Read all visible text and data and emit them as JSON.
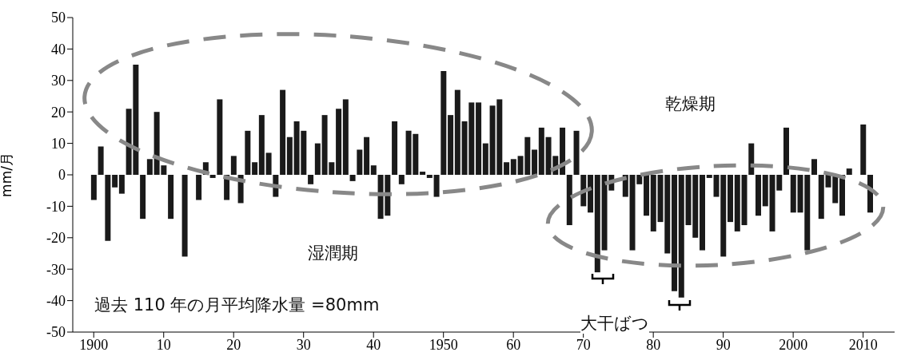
{
  "chart_data": {
    "type": "bar",
    "ylabel": "mm/月",
    "x": [
      1900,
      1901,
      1902,
      1903,
      1904,
      1905,
      1906,
      1907,
      1908,
      1909,
      1910,
      1911,
      1912,
      1913,
      1914,
      1915,
      1916,
      1917,
      1918,
      1919,
      1920,
      1921,
      1922,
      1923,
      1924,
      1925,
      1926,
      1927,
      1928,
      1929,
      1930,
      1931,
      1932,
      1933,
      1934,
      1935,
      1936,
      1937,
      1938,
      1939,
      1940,
      1941,
      1942,
      1943,
      1944,
      1945,
      1946,
      1947,
      1948,
      1949,
      1950,
      1951,
      1952,
      1953,
      1954,
      1955,
      1956,
      1957,
      1958,
      1959,
      1960,
      1961,
      1962,
      1963,
      1964,
      1965,
      1966,
      1967,
      1968,
      1969,
      1970,
      1971,
      1972,
      1973,
      1974,
      1975,
      1976,
      1977,
      1978,
      1979,
      1980,
      1981,
      1982,
      1983,
      1984,
      1985,
      1986,
      1987,
      1988,
      1989,
      1990,
      1991,
      1992,
      1993,
      1994,
      1995,
      1996,
      1997,
      1998,
      1999,
      2000,
      2001,
      2002,
      2003,
      2004,
      2005,
      2006,
      2007,
      2008,
      2009,
      2010,
      2011
    ],
    "values": [
      -8,
      9,
      -21,
      -4,
      -6,
      21,
      35,
      -14,
      5,
      20,
      3,
      -14,
      0,
      -26,
      0,
      -8,
      4,
      -1,
      24,
      -8,
      6,
      -9,
      14,
      4,
      19,
      7,
      -7,
      27,
      12,
      17,
      14,
      -3,
      10,
      19,
      4,
      21,
      24,
      -2,
      8,
      12,
      3,
      -14,
      -13,
      17,
      -3,
      14,
      13,
      1,
      -1,
      -7,
      33,
      19,
      27,
      17,
      23,
      23,
      10,
      22,
      24,
      4,
      5,
      6,
      12,
      8,
      15,
      12,
      6,
      15,
      -16,
      14,
      -10,
      -12,
      -31,
      -24,
      -5,
      0,
      -7,
      -24,
      -3,
      -13,
      -18,
      -15,
      -25,
      -37,
      -39,
      -16,
      -20,
      -24,
      -1,
      -7,
      -26,
      -15,
      -18,
      -16,
      10,
      -13,
      -10,
      -18,
      -5,
      15,
      -12,
      -12,
      -24,
      5,
      -14,
      -4,
      -9,
      -13,
      2,
      0,
      16,
      -12
    ],
    "color": "#1a1a1a",
    "xlim": [
      1897,
      2014.5
    ],
    "xticks": [
      1900,
      {
        "value": 1910,
        "label": "10"
      },
      {
        "value": 1920,
        "label": "20"
      },
      {
        "value": 1930,
        "label": "30"
      },
      {
        "value": 1940,
        "label": "40"
      },
      1950,
      {
        "value": 1960,
        "label": "60"
      },
      {
        "value": 1970,
        "label": "70"
      },
      {
        "value": 1980,
        "label": "80"
      },
      {
        "value": 1990,
        "label": "90"
      },
      2000,
      2010
    ],
    "ylim": [
      -50,
      50
    ],
    "yticks": [
      -50,
      -40,
      -30,
      -20,
      -10,
      0,
      10,
      20,
      30,
      40,
      50
    ],
    "annotations": [
      "湿潤期",
      "乾燥期",
      "過去 110 年の月平均降水量 =80mm",
      "大干ばつ"
    ]
  }
}
